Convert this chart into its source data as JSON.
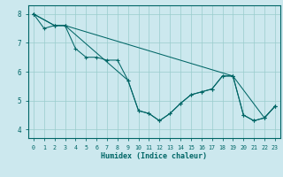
{
  "title": "",
  "xlabel": "Humidex (Indice chaleur)",
  "ylabel": "",
  "bg_color": "#cce8ee",
  "line_color": "#006666",
  "grid_color": "#99cccc",
  "xlim": [
    -0.5,
    23.5
  ],
  "ylim": [
    3.7,
    8.3
  ],
  "xticks": [
    0,
    1,
    2,
    3,
    4,
    5,
    6,
    7,
    8,
    9,
    10,
    11,
    12,
    13,
    14,
    15,
    16,
    17,
    18,
    19,
    20,
    21,
    22,
    23
  ],
  "yticks": [
    4,
    5,
    6,
    7,
    8
  ],
  "series": [
    {
      "x": [
        0,
        1,
        2,
        3,
        4,
        5,
        6,
        7,
        8,
        9,
        10,
        11,
        12,
        13,
        14,
        15,
        16,
        17,
        18,
        19,
        20,
        21,
        22,
        23
      ],
      "y": [
        8.0,
        7.5,
        7.6,
        7.6,
        6.8,
        6.5,
        6.5,
        6.4,
        6.4,
        5.7,
        4.65,
        4.55,
        4.3,
        4.55,
        4.9,
        5.2,
        5.3,
        5.4,
        5.85,
        5.85,
        4.5,
        4.3,
        4.4,
        4.8
      ]
    },
    {
      "x": [
        0,
        2,
        3,
        19,
        22,
        23
      ],
      "y": [
        8.0,
        7.6,
        7.6,
        5.85,
        4.4,
        4.8
      ]
    },
    {
      "x": [
        0,
        2,
        3,
        9,
        10,
        11,
        12,
        13,
        14,
        15,
        16,
        17,
        18,
        19,
        20,
        21,
        22,
        23
      ],
      "y": [
        8.0,
        7.6,
        7.6,
        5.7,
        4.65,
        4.55,
        4.3,
        4.55,
        4.9,
        5.2,
        5.3,
        5.4,
        5.85,
        5.85,
        4.5,
        4.3,
        4.4,
        4.8
      ]
    }
  ]
}
